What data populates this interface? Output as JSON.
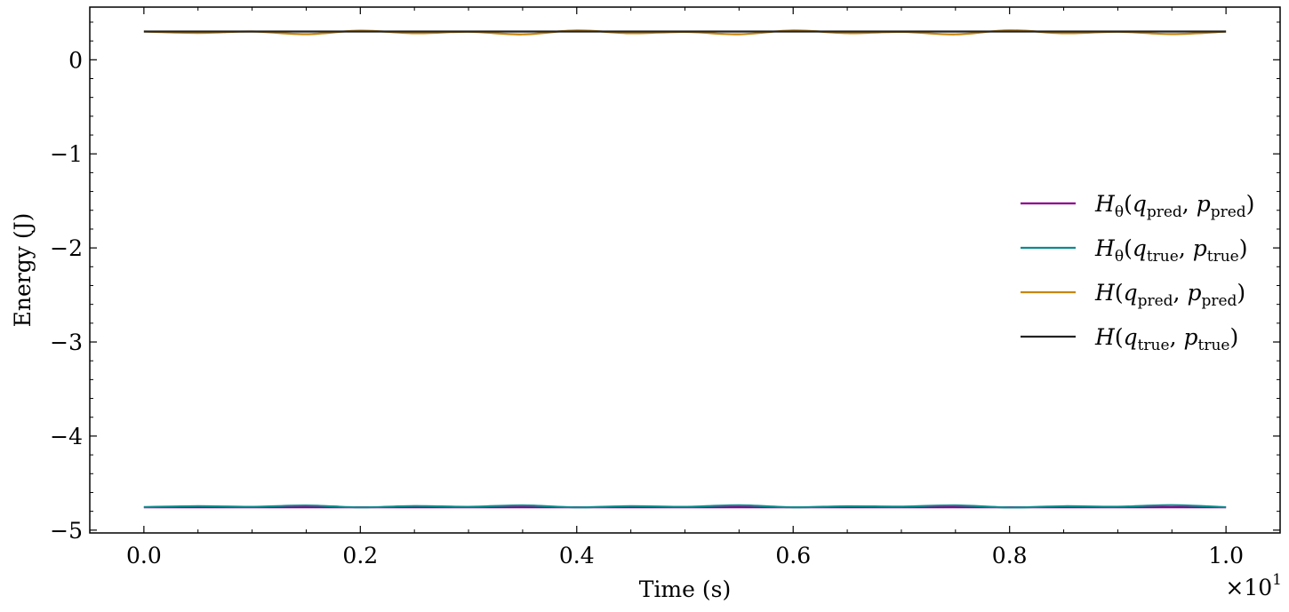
{
  "chart_data": {
    "type": "line",
    "title": "",
    "xlabel": "Time (s)",
    "ylabel": "Energy (J)",
    "x_multiplier_label": "×10",
    "x_multiplier_exponent": "1",
    "xlim": [
      -0.05,
      1.05
    ],
    "ylim": [
      -5.03,
      0.56
    ],
    "x_ticks": [
      0.0,
      0.2,
      0.4,
      0.6,
      0.8,
      1.0
    ],
    "x_tick_labels": [
      "0.0",
      "0.2",
      "0.4",
      "0.6",
      "0.8",
      "1.0"
    ],
    "y_ticks": [
      0,
      -1,
      -2,
      -3,
      -4,
      -5
    ],
    "y_tick_labels": [
      "0",
      "−1",
      "−2",
      "−3",
      "−4",
      "−5"
    ],
    "legend_position": "center-right",
    "grid": false,
    "x": [
      0.0,
      0.05,
      0.1,
      0.15,
      0.2,
      0.25,
      0.3,
      0.35,
      0.4,
      0.45,
      0.5,
      0.55,
      0.6,
      0.65,
      0.7,
      0.75,
      0.8,
      0.85,
      0.9,
      0.95,
      1.0
    ],
    "series": [
      {
        "name": "H_θ(q_pred, p_pred)",
        "label_main": "H",
        "label_sub1": "θ",
        "label_args": [
          "q",
          "pred",
          "p",
          "pred"
        ],
        "color": "#8B008B",
        "values": [
          -4.757,
          -4.757,
          -4.757,
          -4.757,
          -4.757,
          -4.757,
          -4.757,
          -4.757,
          -4.757,
          -4.757,
          -4.757,
          -4.757,
          -4.757,
          -4.757,
          -4.757,
          -4.757,
          -4.757,
          -4.757,
          -4.757,
          -4.757,
          -4.757
        ]
      },
      {
        "name": "H_θ(q_true, p_true)",
        "label_main": "H",
        "label_sub1": "θ",
        "label_args": [
          "q",
          "true",
          "p",
          "true"
        ],
        "color": "#0E8A8E",
        "values": [
          -4.755,
          -4.745,
          -4.752,
          -4.738,
          -4.758,
          -4.744,
          -4.752,
          -4.737,
          -4.758,
          -4.745,
          -4.752,
          -4.736,
          -4.757,
          -4.746,
          -4.75,
          -4.737,
          -4.759,
          -4.746,
          -4.751,
          -4.735,
          -4.756
        ]
      },
      {
        "name": "H(q_pred, p_pred)",
        "label_main": "H",
        "label_sub1": "",
        "label_args": [
          "q",
          "pred",
          "p",
          "pred"
        ],
        "color": "#C8860A",
        "values": [
          0.3,
          0.285,
          0.3,
          0.272,
          0.31,
          0.282,
          0.298,
          0.27,
          0.312,
          0.282,
          0.296,
          0.271,
          0.312,
          0.283,
          0.297,
          0.27,
          0.314,
          0.282,
          0.298,
          0.273,
          0.3
        ]
      },
      {
        "name": "H(q_true, p_true)",
        "label_main": "H",
        "label_sub1": "",
        "label_args": [
          "q",
          "true",
          "p",
          "true"
        ],
        "color": "#222222",
        "values": [
          0.3,
          0.3,
          0.3,
          0.3,
          0.3,
          0.3,
          0.3,
          0.3,
          0.3,
          0.3,
          0.3,
          0.3,
          0.3,
          0.3,
          0.3,
          0.3,
          0.3,
          0.3,
          0.3,
          0.3,
          0.3
        ]
      }
    ]
  }
}
